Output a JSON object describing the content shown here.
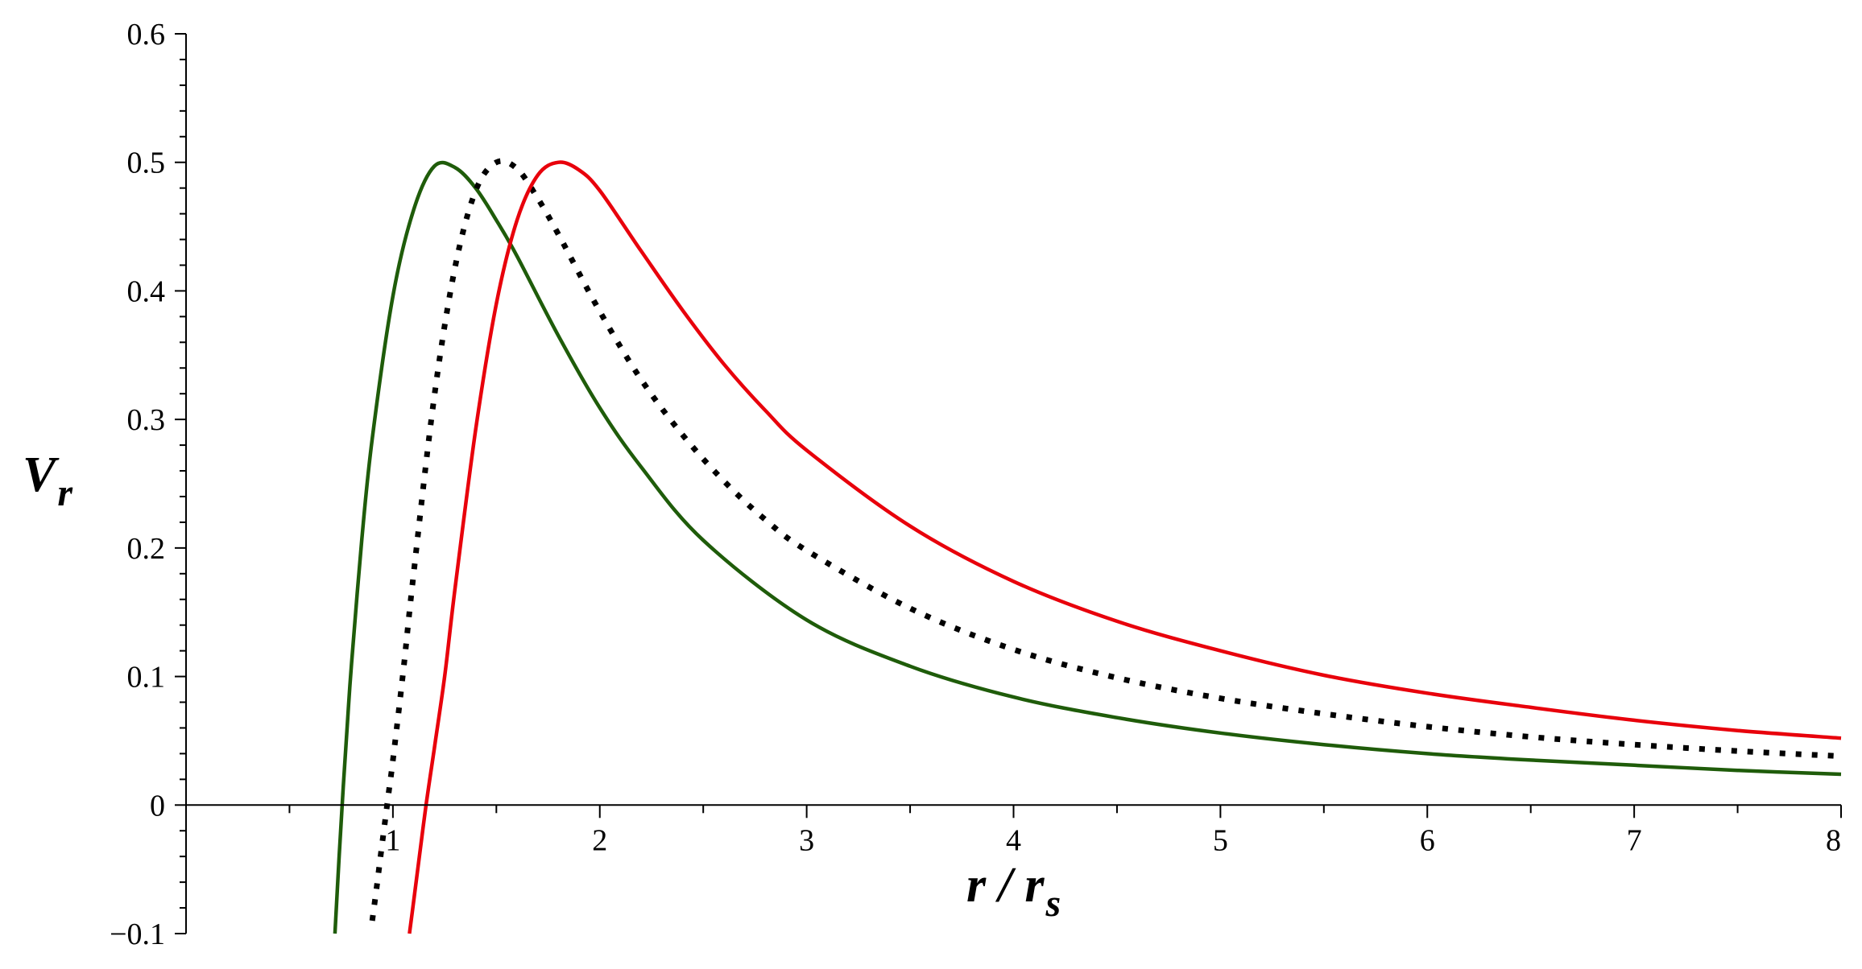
{
  "chart_data": {
    "type": "line",
    "title": "",
    "xlabel": {
      "main": "r / r",
      "sub": "s"
    },
    "ylabel": {
      "main": "V",
      "sub": "r"
    },
    "xlim": [
      0,
      8
    ],
    "ylim": [
      -0.1,
      0.6
    ],
    "grid": false,
    "x_ticks": [
      {
        "value": 1,
        "label": "1"
      },
      {
        "value": 2,
        "label": "2"
      },
      {
        "value": 3,
        "label": "3"
      },
      {
        "value": 4,
        "label": "4"
      },
      {
        "value": 5,
        "label": "5"
      },
      {
        "value": 6,
        "label": "6"
      },
      {
        "value": 7,
        "label": "7"
      },
      {
        "value": 8,
        "label": "8"
      }
    ],
    "y_ticks": [
      {
        "value": -0.1,
        "label": "−0.1"
      },
      {
        "value": 0,
        "label": "0"
      },
      {
        "value": 0.1,
        "label": "0.1"
      },
      {
        "value": 0.2,
        "label": "0.2"
      },
      {
        "value": 0.3,
        "label": "0.3"
      },
      {
        "value": 0.4,
        "label": "0.4"
      },
      {
        "value": 0.5,
        "label": "0.5"
      },
      {
        "value": 0.6,
        "label": "0.6"
      }
    ],
    "series": [
      {
        "color": "#1f5c0a",
        "style": "solid",
        "x": [
          0.72,
          0.74,
          0.76,
          0.78,
          0.8,
          0.85,
          0.9,
          1.0,
          1.1,
          1.2,
          1.3,
          1.4,
          1.5,
          1.6,
          1.8,
          2.0,
          2.2,
          2.5,
          3.0,
          3.5,
          4.0,
          4.5,
          5.0,
          5.5,
          6.0,
          6.5,
          7.0,
          7.5,
          8.0
        ],
        "y": [
          -0.1,
          -0.04,
          0.014,
          0.064,
          0.11,
          0.207,
          0.285,
          0.396,
          0.463,
          0.497,
          0.496,
          0.48,
          0.455,
          0.427,
          0.365,
          0.309,
          0.263,
          0.206,
          0.144,
          0.108,
          0.084,
          0.068,
          0.056,
          0.047,
          0.04,
          0.035,
          0.031,
          0.027,
          0.024
        ]
      },
      {
        "color": "#000000",
        "style": "dotted",
        "x": [
          0.9,
          0.92,
          0.94,
          0.96,
          0.98,
          1.0,
          1.05,
          1.1,
          1.2,
          1.3,
          1.4,
          1.5,
          1.6,
          1.7,
          1.8,
          2.0,
          2.2,
          2.4,
          2.6,
          2.8,
          3.0,
          3.5,
          4.0,
          4.5,
          5.0,
          5.5,
          6.0,
          6.5,
          7.0,
          7.5,
          8.0
        ],
        "y": [
          -0.09,
          -0.066,
          -0.04,
          -0.015,
          0.01,
          0.035,
          0.104,
          0.18,
          0.318,
          0.418,
          0.478,
          0.5,
          0.495,
          0.472,
          0.444,
          0.384,
          0.331,
          0.288,
          0.252,
          0.222,
          0.198,
          0.153,
          0.121,
          0.099,
          0.083,
          0.071,
          0.061,
          0.053,
          0.047,
          0.042,
          0.038
        ]
      },
      {
        "color": "#e8000b",
        "style": "solid",
        "x": [
          1.08,
          1.1,
          1.12,
          1.14,
          1.16,
          1.18,
          1.2,
          1.25,
          1.3,
          1.4,
          1.5,
          1.6,
          1.7,
          1.8,
          1.9,
          2.0,
          2.2,
          2.4,
          2.6,
          2.8,
          3.0,
          3.5,
          4.0,
          4.5,
          5.0,
          5.5,
          6.0,
          6.5,
          7.0,
          7.5,
          8.0
        ],
        "y": [
          -0.1,
          -0.075,
          -0.05,
          -0.025,
          0.0,
          0.022,
          0.044,
          0.1,
          0.168,
          0.292,
          0.39,
          0.455,
          0.49,
          0.5,
          0.494,
          0.478,
          0.431,
          0.385,
          0.343,
          0.307,
          0.276,
          0.217,
          0.174,
          0.143,
          0.12,
          0.101,
          0.087,
          0.076,
          0.066,
          0.058,
          0.052
        ]
      }
    ]
  }
}
